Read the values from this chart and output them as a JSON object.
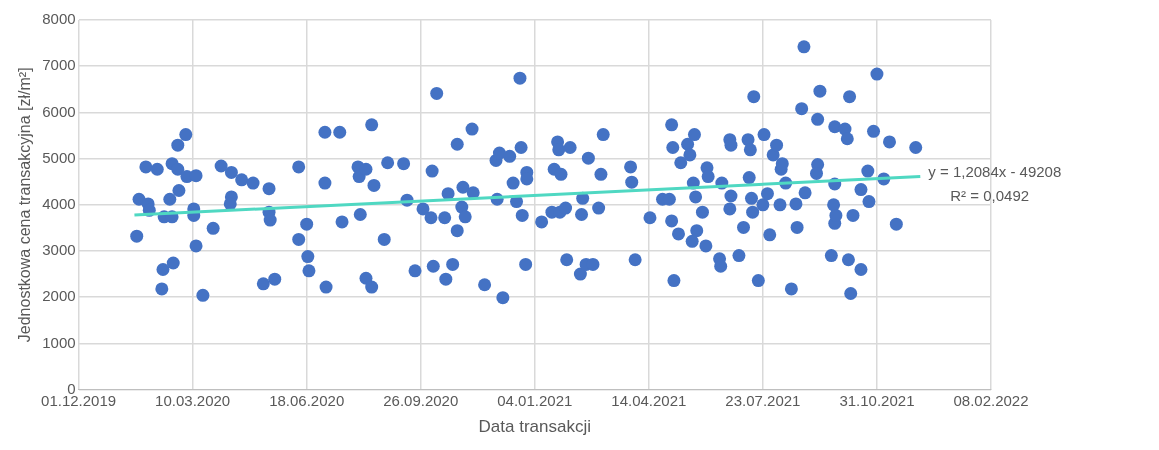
{
  "chart_data": {
    "type": "scatter",
    "xlabel": "Data transakcji",
    "ylabel": "Jednostkowa cena transakcyjna [zł/m²]",
    "xlim": [
      "2019-12-01",
      "2022-02-08"
    ],
    "xticks": [
      {
        "value": "2019-12-01",
        "label": "01.12.2019"
      },
      {
        "value": "2020-03-10",
        "label": "10.03.2020"
      },
      {
        "value": "2020-06-18",
        "label": "18.06.2020"
      },
      {
        "value": "2020-09-26",
        "label": "26.09.2020"
      },
      {
        "value": "2021-01-04",
        "label": "04.01.2021"
      },
      {
        "value": "2021-04-14",
        "label": "14.04.2021"
      },
      {
        "value": "2021-07-23",
        "label": "23.07.2021"
      },
      {
        "value": "2021-10-31",
        "label": "31.10.2021"
      },
      {
        "value": "2022-02-08",
        "label": "08.02.2022"
      }
    ],
    "ylim": [
      0,
      8000
    ],
    "yticks": [
      0,
      1000,
      2000,
      3000,
      4000,
      5000,
      6000,
      7000,
      8000
    ],
    "grid": true,
    "legend": false,
    "marker": "circle",
    "annotations": [
      "y = 1,2084x - 49208",
      "R² = 0,0492"
    ],
    "series": [
      {
        "color": "#4472c4",
        "x": [
          "2020-01-21",
          "2020-01-23",
          "2020-01-29",
          "2020-01-31",
          "2020-02-01",
          "2020-02-08",
          "2020-02-12",
          "2020-02-13",
          "2020-02-14",
          "2020-02-19",
          "2020-02-21",
          "2020-02-21",
          "2020-02-22",
          "2020-02-26",
          "2020-02-26",
          "2020-02-27",
          "2020-03-04",
          "2020-03-05",
          "2020-03-11",
          "2020-03-11",
          "2020-03-13",
          "2020-03-13",
          "2020-03-19",
          "2020-03-28",
          "2020-04-04",
          "2020-04-13",
          "2020-04-13",
          "2020-04-12",
          "2020-04-22",
          "2020-05-02",
          "2020-05-11",
          "2020-05-16",
          "2020-05-16",
          "2020-05-17",
          "2020-05-21",
          "2020-06-11",
          "2020-06-11",
          "2020-06-18",
          "2020-06-19",
          "2020-06-20",
          "2020-07-04",
          "2020-07-04",
          "2020-07-05",
          "2020-07-17",
          "2020-07-19",
          "2020-08-02",
          "2020-08-03",
          "2020-08-09",
          "2020-08-04",
          "2020-08-09",
          "2020-08-14",
          "2020-08-14",
          "2020-08-16",
          "2020-08-25",
          "2020-08-28",
          "2020-09-11",
          "2020-09-14",
          "2020-09-21",
          "2020-09-28",
          "2020-10-05",
          "2020-10-06",
          "2020-10-07",
          "2020-10-10",
          "2020-10-18",
          "2020-10-17",
          "2020-10-20",
          "2020-10-24",
          "2020-10-28",
          "2020-10-28",
          "2020-11-01",
          "2020-11-02",
          "2020-11-04",
          "2020-11-10",
          "2020-11-11",
          "2020-11-21",
          "2020-12-02",
          "2020-12-01",
          "2020-12-04",
          "2020-12-07",
          "2020-12-13",
          "2020-12-16",
          "2020-12-19",
          "2020-12-22",
          "2020-12-23",
          "2020-12-24",
          "2020-12-27",
          "2020-12-28",
          "2020-12-28",
          "2021-01-10",
          "2021-01-19",
          "2021-01-21",
          "2021-01-24",
          "2021-01-25",
          "2021-01-27",
          "2021-01-26",
          "2021-01-31",
          "2021-02-01",
          "2021-02-04",
          "2021-02-14",
          "2021-02-13",
          "2021-02-15",
          "2021-02-18",
          "2021-02-24",
          "2021-02-20",
          "2021-03-03",
          "2021-03-05",
          "2021-03-01",
          "2021-03-29",
          "2021-03-30",
          "2021-04-02",
          "2021-04-15",
          "2021-04-26",
          "2021-05-02",
          "2021-05-04",
          "2021-05-05",
          "2021-05-04",
          "2021-05-06",
          "2021-05-10",
          "2021-05-12",
          "2021-05-18",
          "2021-05-20",
          "2021-05-22",
          "2021-05-24",
          "2021-05-23",
          "2021-05-26",
          "2021-05-25",
          "2021-05-31",
          "2021-06-03",
          "2021-06-04",
          "2021-06-05",
          "2021-06-17",
          "2021-06-15",
          "2021-06-16",
          "2021-06-24",
          "2021-06-25",
          "2021-06-25",
          "2021-06-24",
          "2021-07-02",
          "2021-07-06",
          "2021-07-10",
          "2021-07-12",
          "2021-07-11",
          "2021-07-13",
          "2021-07-14",
          "2021-07-15",
          "2021-07-19",
          "2021-07-23",
          "2021-07-24",
          "2021-07-27",
          "2021-07-29",
          "2021-08-01",
          "2021-08-04",
          "2021-08-07",
          "2021-08-08",
          "2021-08-09",
          "2021-08-12",
          "2021-08-17",
          "2021-08-21",
          "2021-08-22",
          "2021-08-26",
          "2021-08-28",
          "2021-08-29",
          "2021-09-09",
          "2021-09-09",
          "2021-09-11",
          "2021-09-08",
          "2021-09-21",
          "2021-09-23",
          "2021-09-24",
          "2021-09-24",
          "2021-09-25",
          "2021-09-24",
          "2021-10-03",
          "2021-10-05",
          "2021-10-06",
          "2021-10-07",
          "2021-10-08",
          "2021-10-10",
          "2021-10-17",
          "2021-10-17",
          "2021-10-24",
          "2021-10-23",
          "2021-10-28",
          "2021-10-31",
          "2021-11-06",
          "2021-11-11",
          "2021-11-17",
          "2021-12-04"
        ],
        "values": [
          3320,
          4120,
          4820,
          4020,
          3880,
          4770,
          2180,
          2600,
          3740,
          4120,
          4890,
          3740,
          2740,
          5290,
          4770,
          4310,
          5520,
          4610,
          3910,
          3770,
          4630,
          3110,
          2040,
          3490,
          4840,
          4700,
          4170,
          4020,
          4540,
          4470,
          2290,
          4350,
          3840,
          3670,
          2390,
          4820,
          3250,
          3580,
          2880,
          2570,
          5570,
          4470,
          2220,
          5570,
          3630,
          4820,
          4610,
          4770,
          3790,
          2410,
          2220,
          5730,
          4420,
          3250,
          4910,
          4890,
          4100,
          2570,
          3910,
          3720,
          4730,
          2670,
          6410,
          2390,
          3720,
          4240,
          2710,
          3440,
          5310,
          3950,
          4380,
          3740,
          5640,
          4260,
          2270,
          4120,
          4960,
          5120,
          1990,
          5050,
          4470,
          4070,
          6740,
          5240,
          3770,
          2710,
          4700,
          4560,
          3630,
          3840,
          4770,
          5360,
          5190,
          4660,
          3840,
          3930,
          2810,
          5240,
          3790,
          2500,
          4140,
          2710,
          2710,
          5010,
          4660,
          5520,
          3930,
          4820,
          4490,
          2810,
          3720,
          4120,
          4120,
          5730,
          5240,
          3650,
          2360,
          3370,
          4910,
          5310,
          5080,
          3210,
          5520,
          4470,
          3440,
          4170,
          3840,
          3110,
          4800,
          4610,
          4470,
          2830,
          2670,
          5410,
          5290,
          4190,
          3910,
          2900,
          3510,
          5410,
          5190,
          4590,
          4140,
          3840,
          6340,
          2360,
          4000,
          5520,
          4240,
          3350,
          5080,
          5290,
          4000,
          4770,
          4890,
          4470,
          2180,
          4020,
          3510,
          6080,
          7420,
          4260,
          5850,
          4870,
          6460,
          4680,
          2900,
          4000,
          5690,
          3600,
          3770,
          4450,
          5640,
          5430,
          2810,
          6340,
          2080,
          3770,
          2600,
          4330,
          4070,
          4730,
          5590,
          6830,
          4560,
          5360,
          3580,
          5240
        ]
      },
      {
        "type": "line",
        "marker": "none",
        "color": "#4fd8c2",
        "x": [
          "2020-01-19",
          "2021-12-08"
        ],
        "values": [
          3780,
          4610
        ]
      }
    ]
  }
}
